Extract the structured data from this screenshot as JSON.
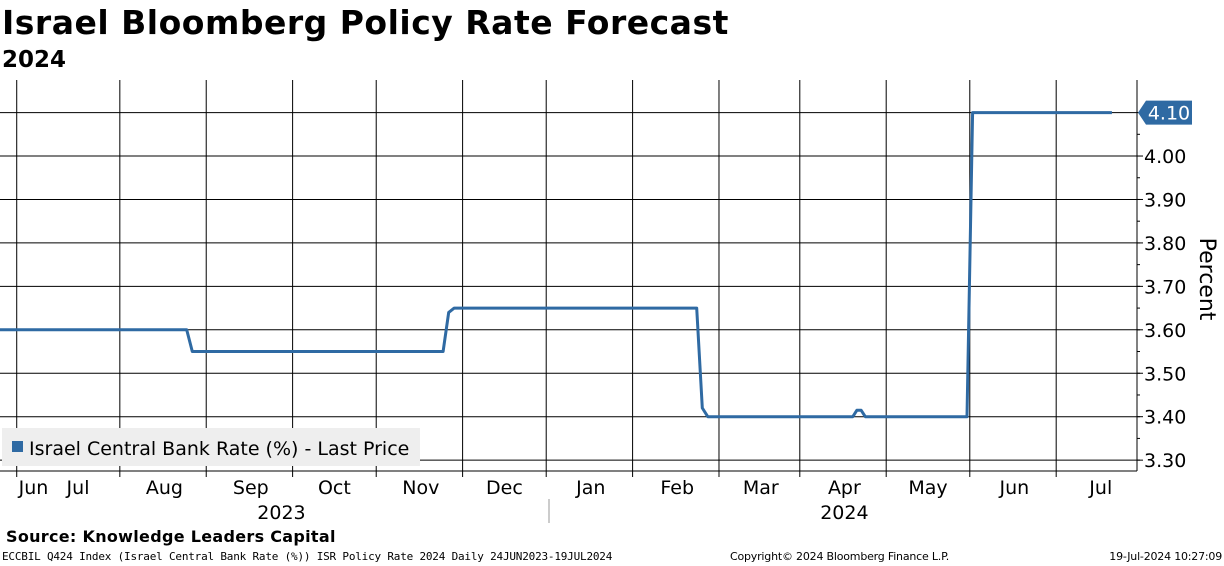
{
  "header": {
    "title": "Israel Bloomberg Policy Rate Forecast",
    "subtitle": "2024"
  },
  "footer": {
    "source": "Source: Knowledge Leaders Capital",
    "ticker_info": "ECCBIL Q424 Index (Israel Central Bank Rate (%)) ISR Policy Rate 2024  Daily 24JUN2023-19JUL2024",
    "copyright": "Copyright© 2024 Bloomberg Finance L.P.",
    "timestamp": "19-Jul-2024 10:27:09"
  },
  "colors": {
    "series": "#2f6aa3",
    "grid": "#000000",
    "legend_bg": "#eeeeee",
    "tag_bg": "#2f6aa3",
    "tag_text": "#ffffff"
  },
  "chart_data": {
    "type": "line",
    "title": "Israel Bloomberg Policy Rate Forecast",
    "subtitle": "2024",
    "ylabel": "Percent",
    "xlabel": "",
    "ylim": [
      3.275,
      4.175
    ],
    "y_ticks": [
      3.3,
      3.4,
      3.5,
      3.6,
      3.7,
      3.8,
      3.9,
      4.0
    ],
    "y_tick_labels": [
      "3.30",
      "3.40",
      "3.50",
      "3.60",
      "3.70",
      "3.80",
      "3.90",
      "4.00"
    ],
    "x_range_days": [
      -6,
      402
    ],
    "month_ticks": [
      {
        "label": "Jun",
        "day": 0
      },
      {
        "label": "Jul",
        "day": 37
      },
      {
        "label": "Aug",
        "day": 68
      },
      {
        "label": "Sep",
        "day": 99
      },
      {
        "label": "Oct",
        "day": 129
      },
      {
        "label": "Nov",
        "day": 160
      },
      {
        "label": "Dec",
        "day": 190
      },
      {
        "label": "Jan",
        "day": 221
      },
      {
        "label": "Feb",
        "day": 252
      },
      {
        "label": "Mar",
        "day": 281
      },
      {
        "label": "Apr",
        "day": 312
      },
      {
        "label": "May",
        "day": 342
      },
      {
        "label": "Jun",
        "day": 373
      },
      {
        "label": "Jul",
        "day": 403
      }
    ],
    "month_label_centers": [
      {
        "label": "Jun",
        "day": 6
      },
      {
        "label": "Jul",
        "day": 22
      },
      {
        "label": "Aug",
        "day": 53
      },
      {
        "label": "Sep",
        "day": 84
      },
      {
        "label": "Oct",
        "day": 114
      },
      {
        "label": "Nov",
        "day": 145
      },
      {
        "label": "Dec",
        "day": 175
      },
      {
        "label": "Jan",
        "day": 206
      },
      {
        "label": "Feb",
        "day": 237
      },
      {
        "label": "Mar",
        "day": 267
      },
      {
        "label": "Apr",
        "day": 297
      },
      {
        "label": "May",
        "day": 327
      },
      {
        "label": "Jun",
        "day": 358
      },
      {
        "label": "Jul",
        "day": 389
      }
    ],
    "year_labels": [
      {
        "label": "2023",
        "day": 95
      },
      {
        "label": "2024",
        "day": 297
      }
    ],
    "year_divider_day": 191,
    "series": [
      {
        "name": "Israel Central Bank Rate (%) - Last Price",
        "last_value": "4.10",
        "points": [
          [
            -6,
            3.6
          ],
          [
            61,
            3.6
          ],
          [
            63,
            3.55
          ],
          [
            153,
            3.55
          ],
          [
            155,
            3.64
          ],
          [
            157,
            3.65
          ],
          [
            244,
            3.65
          ],
          [
            246,
            3.42
          ],
          [
            248,
            3.4
          ],
          [
            300,
            3.4
          ],
          [
            301.5,
            3.415
          ],
          [
            303,
            3.415
          ],
          [
            304.5,
            3.4
          ],
          [
            341,
            3.4
          ],
          [
            343,
            4.1
          ],
          [
            393,
            4.1
          ]
        ]
      }
    ],
    "legend": {
      "position": "bottom-left"
    }
  }
}
